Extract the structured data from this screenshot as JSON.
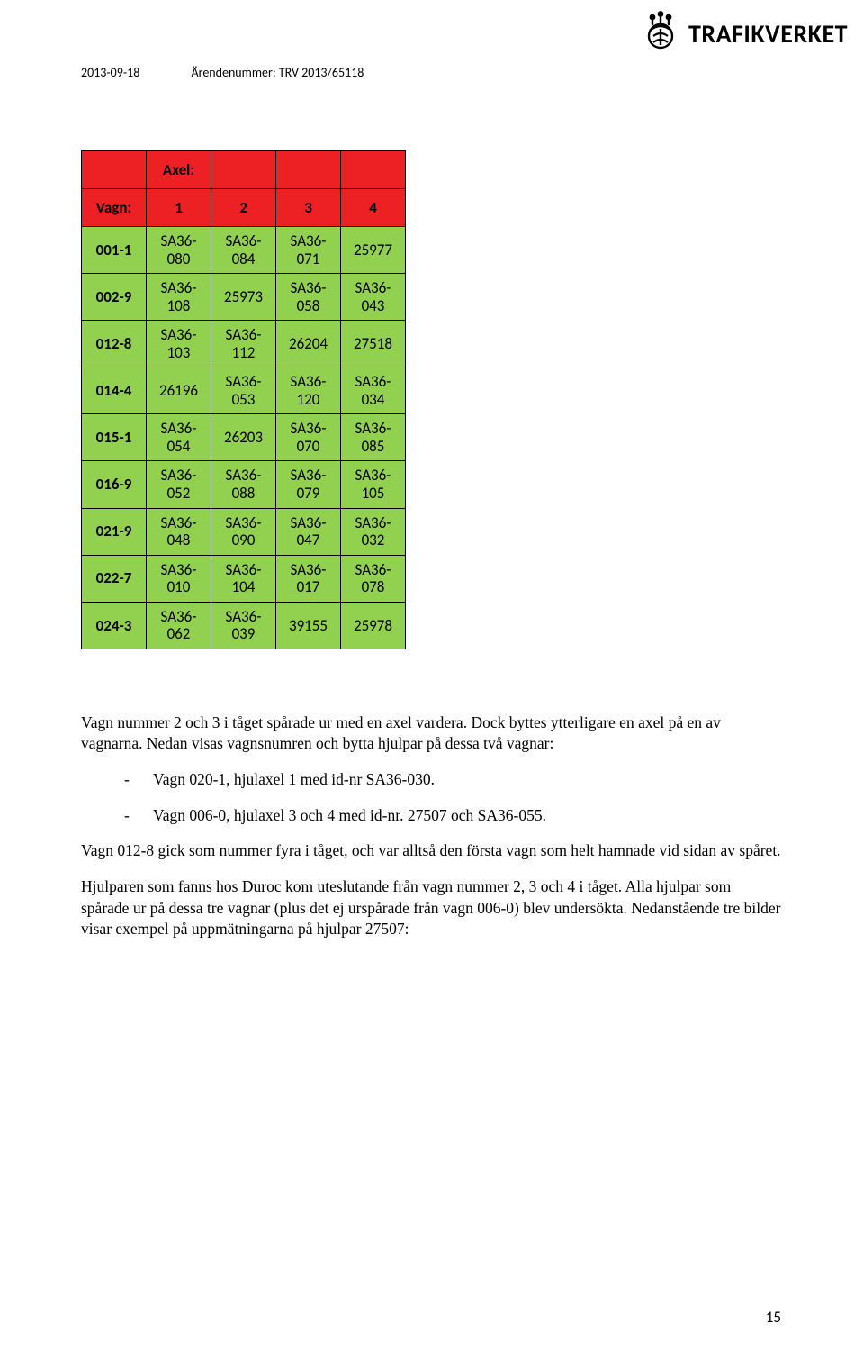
{
  "header": {
    "date": "2013-09-18",
    "case_label": "Ärendenummer: TRV 2013/65118",
    "brand": "TRAFIKVERKET"
  },
  "table": {
    "corner_top": "Axel:",
    "row_header_label": "Vagn:",
    "col_headers": [
      "1",
      "2",
      "3",
      "4"
    ],
    "header_bg": "#ed2024",
    "cell_bg": "#92d050",
    "rows": [
      {
        "label": "001-1",
        "cells": [
          "SA36-080",
          "SA36-084",
          "SA36-071",
          "25977"
        ]
      },
      {
        "label": "002-9",
        "cells": [
          "SA36-108",
          "25973",
          "SA36-058",
          "SA36-043"
        ]
      },
      {
        "label": "012-8",
        "cells": [
          "SA36-103",
          "SA36-112",
          "26204",
          "27518"
        ]
      },
      {
        "label": "014-4",
        "cells": [
          "26196",
          "SA36-053",
          "SA36-120",
          "SA36-034"
        ]
      },
      {
        "label": "015-1",
        "cells": [
          "SA36-054",
          "26203",
          "SA36-070",
          "SA36-085"
        ]
      },
      {
        "label": "016-9",
        "cells": [
          "SA36-052",
          "SA36-088",
          "SA36-079",
          "SA36-105"
        ]
      },
      {
        "label": "021-9",
        "cells": [
          "SA36-048",
          "SA36-090",
          "SA36-047",
          "SA36-032"
        ]
      },
      {
        "label": "022-7",
        "cells": [
          "SA36-010",
          "SA36-104",
          "SA36-017",
          "SA36-078"
        ]
      },
      {
        "label": "024-3",
        "cells": [
          "SA36-062",
          "SA36-039",
          "39155",
          "25978"
        ]
      }
    ]
  },
  "body": {
    "p1": "Vagn nummer 2 och 3 i tåget spårade ur med en axel vardera. Dock byttes ytterligare en axel på en av vagnarna. Nedan visas vagnsnumren och bytta hjulpar på dessa två vagnar:",
    "li1": "Vagn 020-1, hjulaxel 1 med id-nr SA36-030.",
    "li2": "Vagn 006-0, hjulaxel 3 och 4 med id-nr. 27507 och SA36-055.",
    "p2": "Vagn 012-8 gick som nummer fyra i tåget, och var alltså den första vagn som helt hamnade vid sidan av spåret.",
    "p3": "Hjulparen som fanns hos Duroc kom uteslutande från vagn nummer 2, 3 och 4 i tåget. Alla hjulpar som spårade ur på dessa tre vagnar (plus det ej urspårade från vagn 006-0) blev undersökta. Nedanstående tre bilder visar exempel på uppmätningarna på hjulpar 27507:"
  },
  "page_number": "15"
}
